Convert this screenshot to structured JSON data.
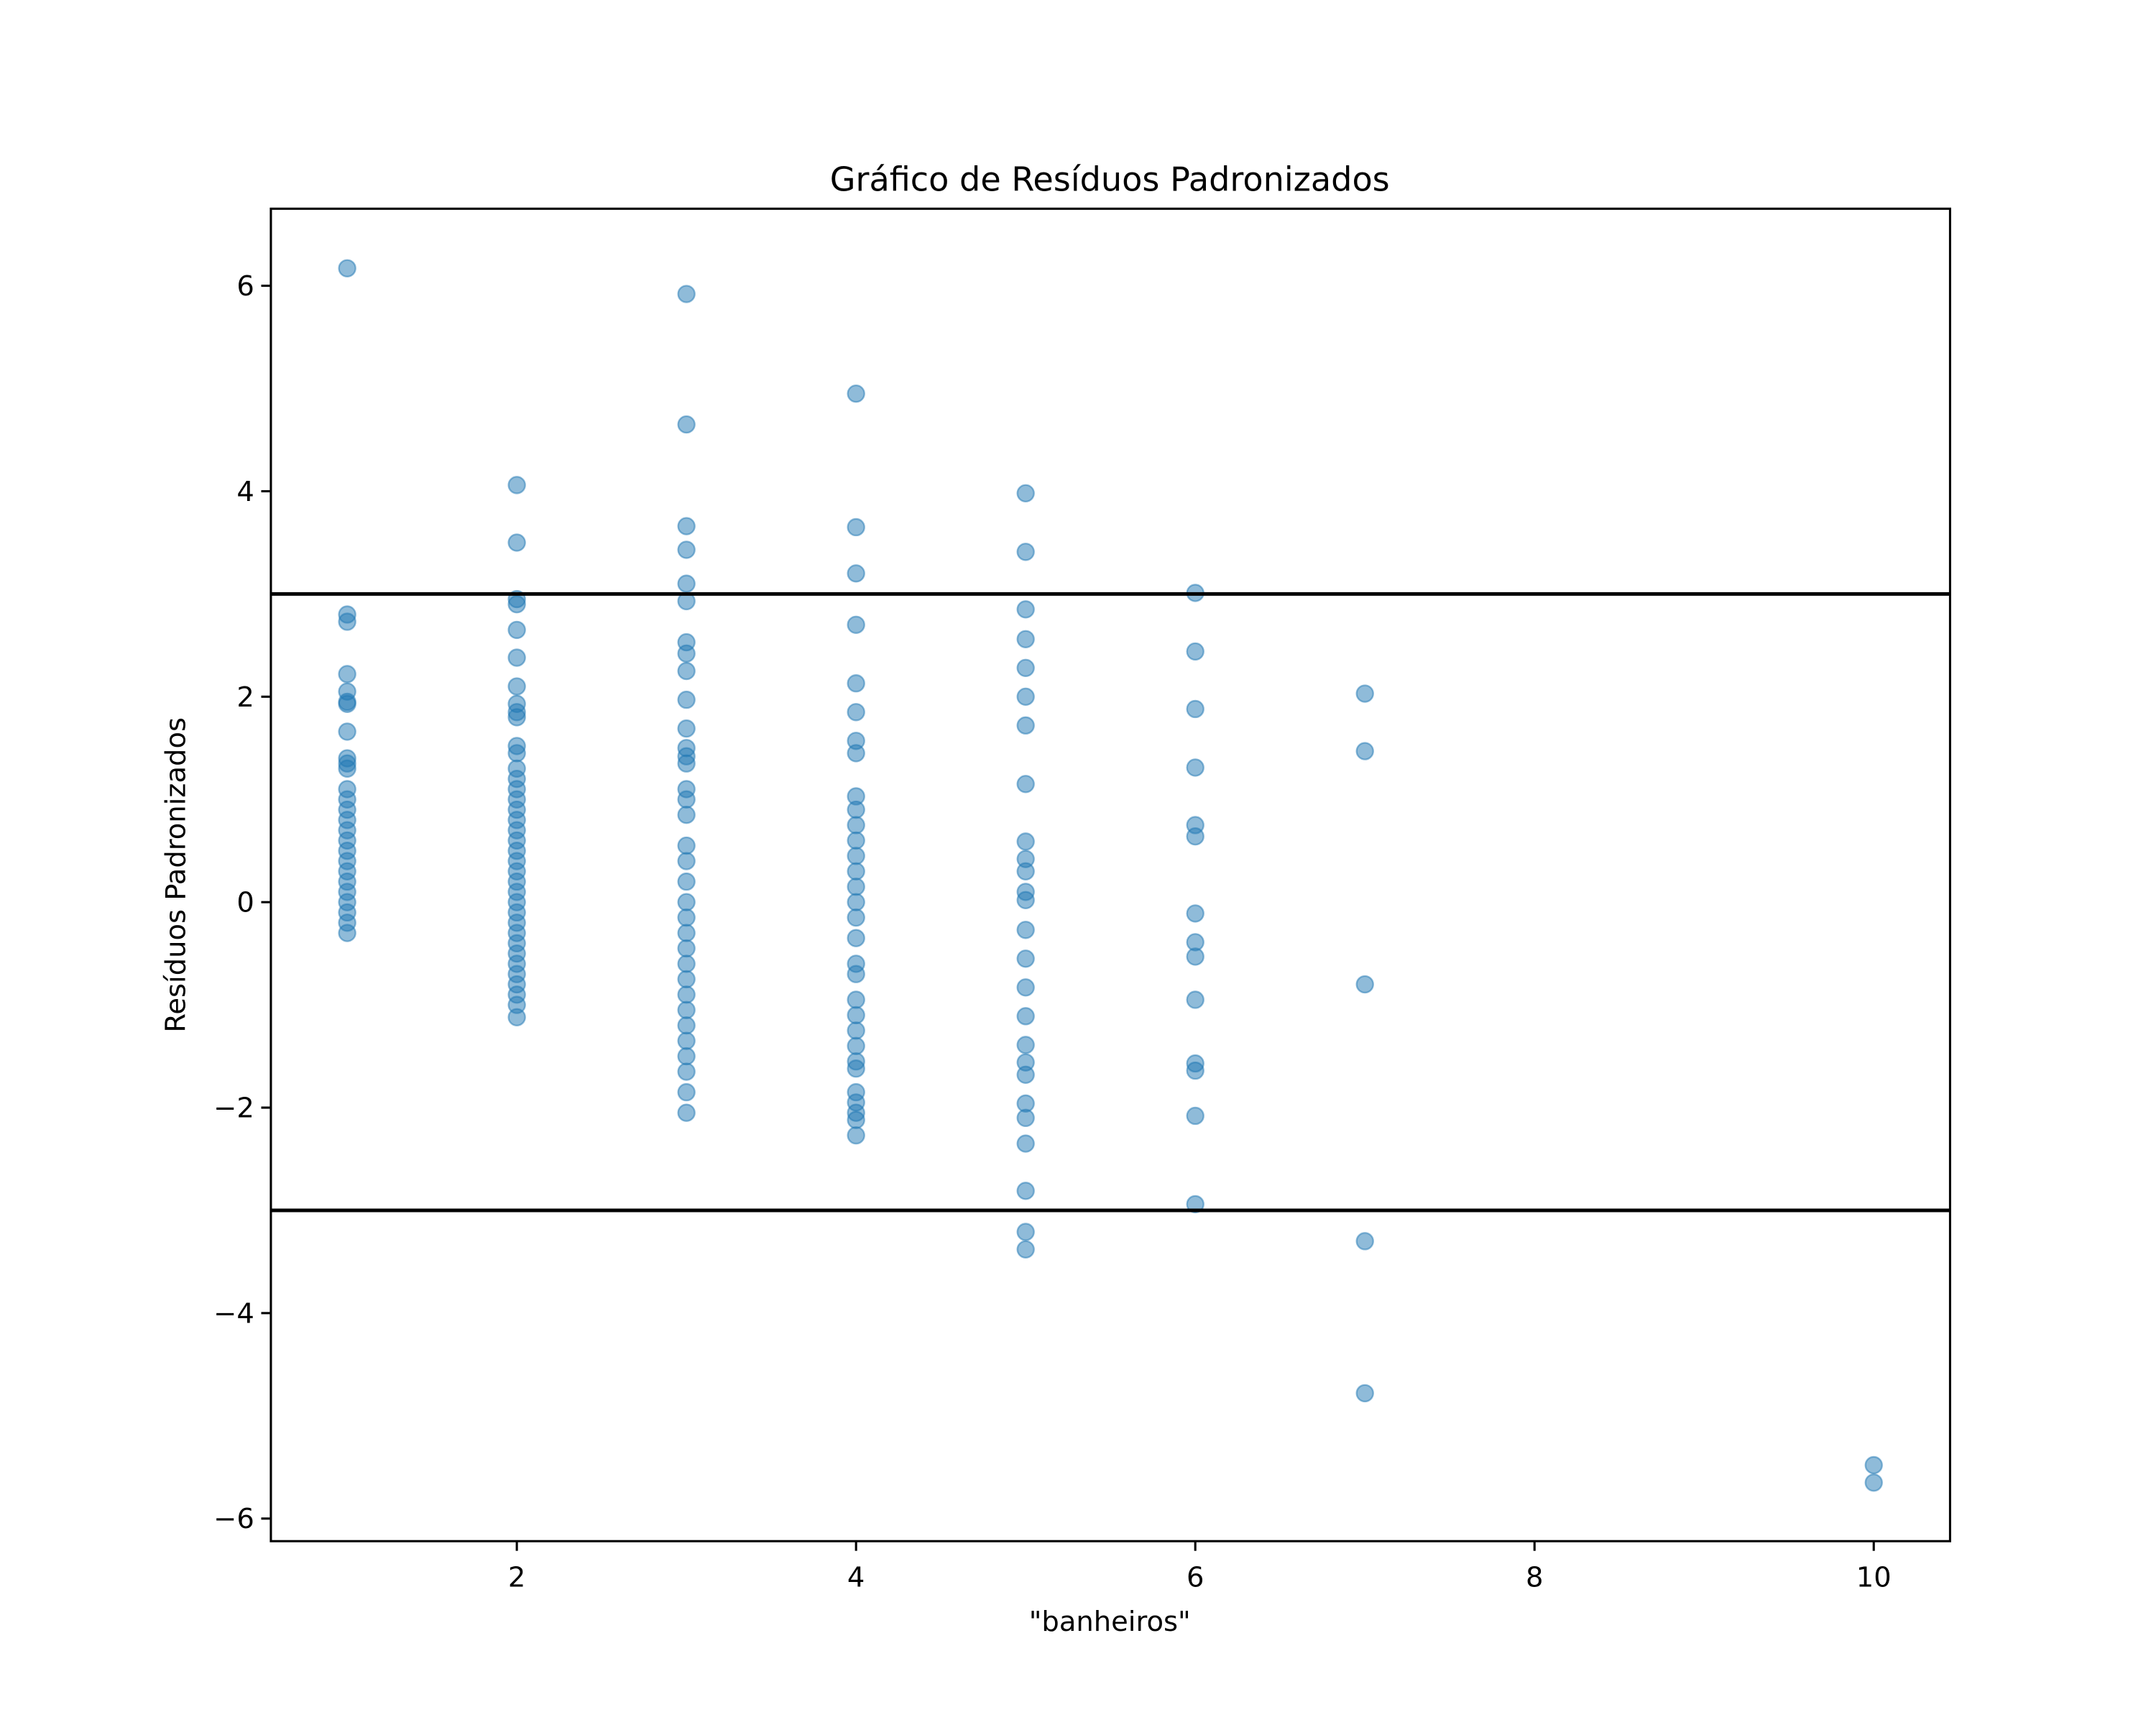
{
  "chart_data": {
    "type": "scatter",
    "title": "Gráfico de Resíduos Padronizados",
    "x_label": "\"banheiros\"",
    "y_label": "Resíduos Padronizados",
    "color": "#1f77b4",
    "reference_lines": [
      3,
      -3
    ],
    "xlim": [
      0.55,
      10.45
    ],
    "ylim": [
      -6.22,
      6.75
    ],
    "xticks": [
      2,
      4,
      6,
      8,
      10
    ],
    "yticks": [
      {
        "value": -6,
        "label": "−6"
      },
      {
        "value": -4,
        "label": "−4"
      },
      {
        "value": -2,
        "label": "−2"
      },
      0,
      2,
      4,
      6
    ],
    "x": [
      1,
      1,
      1,
      1,
      1,
      1,
      1,
      1,
      1,
      1,
      1,
      1,
      1,
      1,
      1,
      1,
      1,
      1,
      1,
      1,
      1,
      1,
      1,
      1,
      1,
      1,
      2,
      2,
      2,
      2,
      2,
      2,
      2,
      2,
      2,
      2,
      2,
      2,
      2,
      2,
      2,
      2,
      2,
      2,
      2,
      2,
      2,
      2,
      2,
      2,
      2,
      2,
      2,
      2,
      2,
      2,
      2,
      2,
      2,
      2,
      2,
      2,
      2,
      3,
      3,
      3,
      3,
      3,
      3,
      3,
      3,
      3,
      3,
      3,
      3,
      3,
      3,
      3,
      3,
      3,
      3,
      3,
      3,
      3,
      3,
      3,
      3,
      3,
      3,
      3,
      3,
      3,
      3,
      3,
      3,
      3,
      3,
      4,
      4,
      4,
      4,
      4,
      4,
      4,
      4,
      4,
      4,
      4,
      4,
      4,
      4,
      4,
      4,
      4,
      4,
      4,
      4,
      4,
      4,
      4,
      4,
      4,
      4,
      4,
      4,
      4,
      4,
      4,
      5,
      5,
      5,
      5,
      5,
      5,
      5,
      5,
      5,
      5,
      5,
      5,
      5,
      5,
      5,
      5,
      5,
      5,
      5,
      5,
      5,
      5,
      5,
      5,
      5,
      5,
      6,
      6,
      6,
      6,
      6,
      6,
      6,
      6,
      6,
      6,
      6,
      6,
      6,
      6,
      7,
      7,
      7,
      7,
      7,
      10,
      10
    ],
    "y": [
      6.17,
      2.8,
      2.73,
      2.22,
      2.05,
      1.95,
      1.93,
      1.66,
      1.4,
      1.35,
      1.3,
      1.1,
      1.0,
      0.9,
      0.8,
      0.7,
      0.6,
      0.5,
      0.4,
      0.3,
      0.2,
      0.1,
      0,
      -0.1,
      -0.2,
      -0.3,
      4.06,
      3.5,
      2.95,
      2.9,
      2.65,
      2.38,
      2.1,
      1.93,
      1.85,
      1.8,
      1.52,
      1.45,
      1.3,
      1.2,
      1.1,
      1.0,
      0.9,
      0.8,
      0.7,
      0.6,
      0.5,
      0.4,
      0.3,
      0.2,
      0.1,
      0,
      -0.1,
      -0.2,
      -0.3,
      -0.4,
      -0.5,
      -0.6,
      -0.7,
      -0.8,
      -0.9,
      -1.0,
      -1.12,
      5.92,
      4.65,
      3.66,
      3.43,
      3.1,
      2.93,
      2.53,
      2.42,
      2.25,
      1.97,
      1.69,
      1.5,
      1.42,
      1.35,
      1.1,
      1.0,
      0.85,
      0.55,
      0.4,
      0.2,
      0,
      -0.15,
      -0.3,
      -0.45,
      -0.6,
      -0.75,
      -0.9,
      -1.05,
      -1.2,
      -1.35,
      -1.5,
      -1.65,
      -1.85,
      -2.05,
      4.95,
      3.65,
      3.2,
      2.7,
      2.13,
      1.85,
      1.57,
      1.45,
      1.03,
      0.9,
      0.75,
      0.6,
      0.45,
      0.3,
      0.15,
      0,
      -0.15,
      -0.35,
      -0.6,
      -0.7,
      -0.95,
      -1.1,
      -1.25,
      -1.4,
      -1.55,
      -1.62,
      -1.85,
      -1.95,
      -2.05,
      -2.12,
      -2.27,
      3.98,
      3.41,
      2.85,
      2.56,
      2.28,
      2.0,
      1.72,
      1.15,
      0.59,
      0.42,
      0.3,
      0.1,
      0.02,
      -0.27,
      -0.55,
      -0.83,
      -1.11,
      -1.39,
      -1.56,
      -1.68,
      -1.96,
      -2.1,
      -2.35,
      -2.81,
      -3.21,
      -3.38,
      3.01,
      2.44,
      1.88,
      1.31,
      0.75,
      0.64,
      -0.11,
      -0.39,
      -0.53,
      -0.95,
      -1.57,
      -1.64,
      -2.08,
      -2.94,
      2.03,
      1.47,
      -0.8,
      -3.3,
      -4.78,
      -5.48,
      -5.65
    ]
  }
}
